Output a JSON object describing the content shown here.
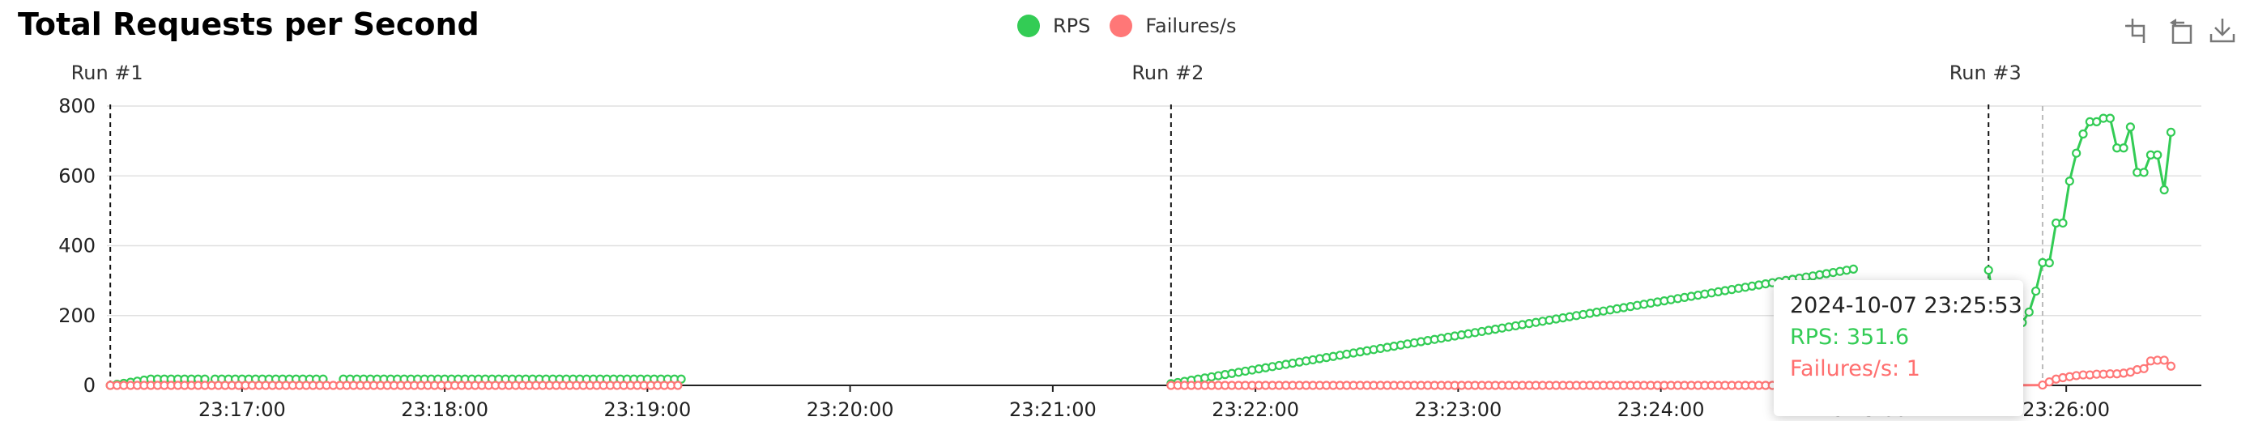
{
  "title": "Total Requests per Second",
  "legend": [
    {
      "name": "RPS",
      "color": "#33cc55"
    },
    {
      "name": "Failures/s",
      "color": "#ff7777"
    }
  ],
  "toolbox": [
    "zoom-icon",
    "zoom-reset-icon",
    "download-icon"
  ],
  "tooltip": {
    "time": "2024-10-07 23:25:53",
    "rps": "RPS: 351.6",
    "failures": "Failures/s: 1"
  },
  "chart_data": {
    "type": "line",
    "title": "Total Requests per Second",
    "ylim": [
      0,
      800
    ],
    "yticks": [
      0,
      200,
      400,
      600,
      800
    ],
    "xrange": [
      "23:16:20",
      "23:26:40"
    ],
    "xticks": [
      "23:17:00",
      "23:18:00",
      "23:19:00",
      "23:20:00",
      "23:21:00",
      "23:22:00",
      "23:23:00",
      "23:24:00",
      "23:25:00",
      "23:26:00"
    ],
    "grid": true,
    "legend_position": "top-center",
    "runs": [
      {
        "label": "Run #1",
        "time": "23:16:21"
      },
      {
        "label": "Run #2",
        "time": "23:21:35"
      },
      {
        "label": "Run #3",
        "time": "23:25:37"
      }
    ],
    "series": [
      {
        "name": "RPS",
        "color": "#33cc55",
        "segments": [
          {
            "start": "23:16:21",
            "end": "23:16:50",
            "step_s": 2,
            "from": 0,
            "to": 18
          },
          {
            "start": "23:16:52",
            "end": "23:17:25",
            "step_s": 2,
            "from": 18,
            "to": 18
          },
          {
            "start": "23:17:30",
            "end": "23:19:10",
            "step_s": 2,
            "from": 18,
            "to": 18
          },
          {
            "start": "23:21:35",
            "end": "23:24:57",
            "step_s": 2,
            "from": 5,
            "to": 333
          },
          {
            "points": [
              [
                "23:25:37",
                330
              ],
              [
                "23:25:41",
                90
              ],
              [
                "23:25:45",
                180
              ],
              [
                "23:25:47",
                180
              ],
              [
                "23:25:49",
                210
              ],
              [
                "23:25:51",
                270
              ],
              [
                "23:25:53",
                351.6
              ],
              [
                "23:25:55",
                351
              ],
              [
                "23:25:57",
                465
              ],
              [
                "23:25:59",
                465
              ],
              [
                "23:26:01",
                585
              ],
              [
                "23:26:03",
                665
              ],
              [
                "23:26:05",
                720
              ],
              [
                "23:26:07",
                755
              ],
              [
                "23:26:09",
                755
              ],
              [
                "23:26:11",
                765
              ],
              [
                "23:26:13",
                765
              ],
              [
                "23:26:15",
                680
              ],
              [
                "23:26:17",
                680
              ],
              [
                "23:26:19",
                740
              ],
              [
                "23:26:21",
                610
              ],
              [
                "23:26:23",
                610
              ],
              [
                "23:26:25",
                660
              ],
              [
                "23:26:27",
                660
              ],
              [
                "23:26:29",
                560
              ],
              [
                "23:26:31",
                725
              ]
            ]
          }
        ]
      },
      {
        "name": "Failures/s",
        "color": "#ff7777",
        "segments": [
          {
            "start": "23:16:21",
            "end": "23:19:10",
            "step_s": 2,
            "from": 0,
            "to": 0
          },
          {
            "start": "23:21:35",
            "end": "23:25:37",
            "step_s": 2,
            "from": 0,
            "to": 0
          },
          {
            "points": [
              [
                "23:25:37",
                0
              ],
              [
                "23:25:53",
                1
              ],
              [
                "23:25:55",
                10
              ],
              [
                "23:25:57",
                18
              ],
              [
                "23:25:59",
                22
              ],
              [
                "23:26:01",
                25
              ],
              [
                "23:26:03",
                28
              ],
              [
                "23:26:05",
                30
              ],
              [
                "23:26:07",
                30
              ],
              [
                "23:26:09",
                32
              ],
              [
                "23:26:11",
                32
              ],
              [
                "23:26:13",
                33
              ],
              [
                "23:26:15",
                33
              ],
              [
                "23:26:17",
                35
              ],
              [
                "23:26:19",
                38
              ],
              [
                "23:26:21",
                45
              ],
              [
                "23:26:23",
                48
              ],
              [
                "23:26:25",
                70
              ],
              [
                "23:26:27",
                72
              ],
              [
                "23:26:29",
                72
              ],
              [
                "23:26:31",
                55
              ]
            ]
          }
        ]
      }
    ]
  }
}
